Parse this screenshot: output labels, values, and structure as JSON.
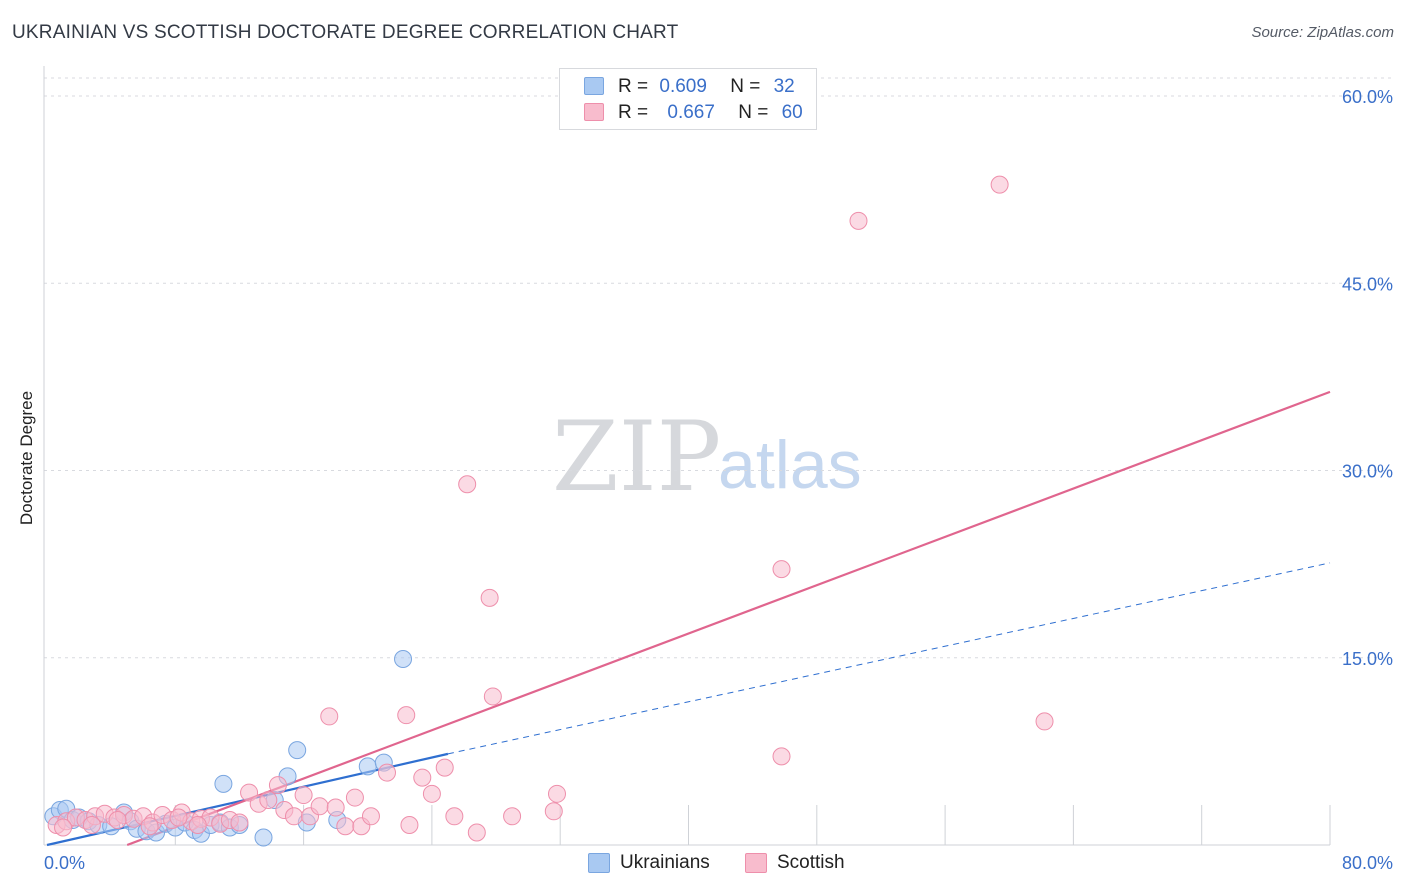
{
  "header": {
    "title": "UKRAINIAN VS SCOTTISH DOCTORATE DEGREE CORRELATION CHART",
    "source": "Source: ZipAtlas.com"
  },
  "watermark": {
    "zip": "ZIP",
    "atlas": "atlas"
  },
  "legend": {
    "r_label": "R =",
    "n_label": "N =",
    "rows": [
      {
        "name": "Ukrainians",
        "r": "0.609",
        "n": "32",
        "color": "#a9c9f2",
        "stroke": "#7aa6e0"
      },
      {
        "name": "Scottish",
        "r": "0.667",
        "n": "60",
        "color": "#f8bccd",
        "stroke": "#ee8fab"
      }
    ]
  },
  "chart_data": {
    "type": "scatter",
    "title": "UKRAINIAN VS SCOTTISH DOCTORATE DEGREE CORRELATION CHART",
    "xlabel": "",
    "ylabel": "Doctorate Degree",
    "xlim": [
      0,
      80
    ],
    "ylim": [
      0,
      62
    ],
    "x_tick_labels": [
      {
        "value": 0,
        "label": "0.0%"
      },
      {
        "value": 80,
        "label": "80.0%"
      }
    ],
    "y_ticks": [
      {
        "value": 15,
        "label": "15.0%"
      },
      {
        "value": 30,
        "label": "30.0%"
      },
      {
        "value": 45,
        "label": "45.0%"
      },
      {
        "value": 60,
        "label": "60.0%"
      }
    ],
    "x_grid": [
      0,
      8,
      16,
      24,
      32,
      40,
      48,
      56,
      64,
      72,
      80
    ],
    "series": [
      {
        "name": "Ukrainians",
        "color": "#a9c9f2",
        "stroke": "#7aa6e0",
        "line_color": "#2f6fd0",
        "points": [
          [
            0.4,
            2.3
          ],
          [
            0.8,
            2.8
          ],
          [
            1.2,
            2.9
          ],
          [
            1.6,
            2.0
          ],
          [
            2.0,
            2.2
          ],
          [
            2.6,
            1.9
          ],
          [
            3.2,
            1.6
          ],
          [
            4.0,
            1.5
          ],
          [
            4.8,
            2.6
          ],
          [
            5.2,
            1.9
          ],
          [
            5.6,
            1.3
          ],
          [
            6.2,
            1.1
          ],
          [
            6.8,
            1.0
          ],
          [
            7.4,
            1.7
          ],
          [
            8.0,
            1.4
          ],
          [
            8.6,
            1.8
          ],
          [
            9.2,
            1.2
          ],
          [
            9.6,
            0.9
          ],
          [
            10.2,
            1.6
          ],
          [
            10.8,
            1.8
          ],
          [
            11.4,
            1.4
          ],
          [
            12.0,
            1.6
          ],
          [
            11.0,
            4.9
          ],
          [
            13.5,
            0.6
          ],
          [
            14.2,
            3.6
          ],
          [
            15.0,
            5.5
          ],
          [
            15.6,
            7.6
          ],
          [
            16.2,
            1.8
          ],
          [
            18.1,
            2.0
          ],
          [
            20.0,
            6.3
          ],
          [
            21.0,
            6.6
          ],
          [
            22.2,
            14.9
          ]
        ],
        "trend": {
          "x": [
            0,
            25
          ],
          "y": [
            0.0,
            7.3
          ]
        },
        "trend_extended": {
          "x": [
            25,
            80
          ],
          "y": [
            7.3,
            22.6
          ]
        }
      },
      {
        "name": "Scottish",
        "color": "#f8bccd",
        "stroke": "#ee8fab",
        "line_color": "#e0658e",
        "points": [
          [
            0.6,
            1.6
          ],
          [
            1.2,
            1.9
          ],
          [
            1.8,
            2.2
          ],
          [
            2.4,
            2.0
          ],
          [
            3.0,
            2.3
          ],
          [
            3.6,
            2.5
          ],
          [
            4.2,
            2.2
          ],
          [
            4.8,
            2.4
          ],
          [
            5.4,
            2.1
          ],
          [
            6.0,
            2.3
          ],
          [
            6.6,
            1.8
          ],
          [
            7.2,
            2.4
          ],
          [
            7.8,
            2.0
          ],
          [
            8.4,
            2.6
          ],
          [
            9.0,
            1.9
          ],
          [
            9.6,
            2.1
          ],
          [
            10.2,
            2.2
          ],
          [
            10.8,
            1.7
          ],
          [
            11.4,
            2.0
          ],
          [
            12.0,
            1.8
          ],
          [
            12.6,
            4.2
          ],
          [
            13.2,
            3.3
          ],
          [
            13.8,
            3.6
          ],
          [
            14.4,
            4.8
          ],
          [
            14.8,
            2.8
          ],
          [
            15.4,
            2.3
          ],
          [
            16.0,
            4.0
          ],
          [
            16.4,
            2.3
          ],
          [
            17.0,
            3.1
          ],
          [
            17.6,
            10.3
          ],
          [
            18.0,
            3.0
          ],
          [
            18.6,
            1.5
          ],
          [
            19.2,
            3.8
          ],
          [
            19.6,
            1.5
          ],
          [
            20.2,
            2.3
          ],
          [
            21.2,
            5.8
          ],
          [
            22.4,
            10.4
          ],
          [
            22.6,
            1.6
          ],
          [
            23.4,
            5.4
          ],
          [
            24.0,
            4.1
          ],
          [
            24.8,
            6.2
          ],
          [
            25.4,
            2.3
          ],
          [
            26.2,
            28.9
          ],
          [
            26.8,
            1.0
          ],
          [
            27.6,
            19.8
          ],
          [
            27.8,
            11.9
          ],
          [
            29.0,
            2.3
          ],
          [
            31.6,
            2.7
          ],
          [
            31.8,
            4.1
          ],
          [
            45.8,
            7.1
          ],
          [
            45.8,
            22.1
          ],
          [
            50.6,
            50.0
          ],
          [
            59.4,
            52.9
          ],
          [
            62.2,
            9.9
          ],
          [
            1.0,
            1.4
          ],
          [
            2.8,
            1.6
          ],
          [
            4.4,
            2.0
          ],
          [
            6.4,
            1.5
          ],
          [
            8.2,
            2.2
          ],
          [
            9.4,
            1.6
          ]
        ],
        "trend": {
          "x": [
            5,
            80
          ],
          "y": [
            0.0,
            36.3
          ]
        }
      }
    ]
  },
  "bottom_legend": [
    {
      "name": "Ukrainians"
    },
    {
      "name": "Scottish"
    }
  ]
}
